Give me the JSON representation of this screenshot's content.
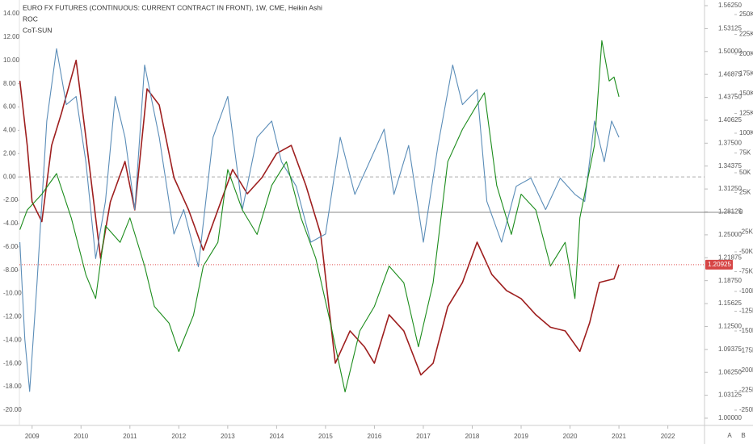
{
  "chart_data": {
    "type": "line",
    "headers": [
      "EURO FX FUTURES (CONTINUOUS: CURRENT CONTRACT IN FRONT), 1W, CME, Heikin Ashi",
      "ROC",
      "CoT-SUN"
    ],
    "controls": [
      "A",
      "B"
    ],
    "xlim": [
      2008.74,
      2022.75
    ],
    "xticks": [
      2009,
      2010,
      2011,
      2012,
      2013,
      2014,
      2015,
      2016,
      2017,
      2018,
      2019,
      2020,
      2021,
      2022
    ],
    "ylim": [
      -20,
      14
    ],
    "yticks": [
      {
        "value": 14,
        "label": "14.00"
      },
      {
        "value": 12,
        "label": "12.00"
      },
      {
        "value": 10,
        "label": "10.00"
      },
      {
        "value": 8,
        "label": "8.00"
      },
      {
        "value": 6,
        "label": "6.00"
      },
      {
        "value": 4,
        "label": "4.00"
      },
      {
        "value": 2,
        "label": "2.00"
      },
      {
        "value": 0,
        "label": "0.00"
      },
      {
        "value": -2,
        "label": "-2.00"
      },
      {
        "value": -4,
        "label": "-4.00"
      },
      {
        "value": -6,
        "label": "-6.00"
      },
      {
        "value": -8,
        "label": "-8.00"
      },
      {
        "value": -10,
        "label": "-10.00"
      },
      {
        "value": -12,
        "label": "-12.00"
      },
      {
        "value": -14,
        "label": "-14.00"
      },
      {
        "value": -16,
        "label": "-16.00"
      },
      {
        "value": -18,
        "label": "-18.00"
      },
      {
        "value": -20,
        "label": "-20.00"
      }
    ],
    "y2lim": [
      1.0,
      1.5625
    ],
    "y2ticks": [
      {
        "value": 1.5625,
        "label": "1.56250"
      },
      1.53125,
      {
        "value": 1.5,
        "label": "1.50000"
      },
      1.46875,
      {
        "value": 1.4375,
        "label": "1.43750"
      },
      1.40625,
      {
        "value": 1.375,
        "label": "1.37500"
      },
      1.34375,
      {
        "value": 1.3125,
        "label": "1.31250"
      },
      1.28125,
      {
        "value": 1.25,
        "label": "1.25000"
      },
      1.21875,
      {
        "value": 1.1875,
        "label": "1.18750"
      },
      1.15625,
      {
        "value": 1.125,
        "label": "1.12500"
      },
      1.09375,
      {
        "value": 1.0625,
        "label": "1.06250"
      },
      1.03125,
      {
        "value": 1,
        "label": "1.00000"
      }
    ],
    "y3lim": [
      -250000,
      250000
    ],
    "y3ticks": [
      {
        "value": 250000,
        "label": "250K"
      },
      {
        "value": 225000,
        "label": "225K"
      },
      {
        "value": 200000,
        "label": "200K"
      },
      {
        "value": 175000,
        "label": "175K"
      },
      {
        "value": 150000,
        "label": "150K"
      },
      {
        "value": 125000,
        "label": "125K"
      },
      {
        "value": 100000,
        "label": "100K"
      },
      {
        "value": 75000,
        "label": "75K"
      },
      {
        "value": 50000,
        "label": "50K"
      },
      {
        "value": 25000,
        "label": "25K"
      },
      0,
      {
        "value": -25000,
        "label": "-25K"
      },
      {
        "value": -50000,
        "label": "-50K"
      },
      {
        "value": -75000,
        "label": "-75K"
      },
      {
        "value": -100000,
        "label": "-100K"
      },
      {
        "value": -125000,
        "label": "-125K"
      },
      {
        "value": -150000,
        "label": "-150K"
      },
      {
        "value": -175000,
        "label": "-175K"
      },
      {
        "value": -200000,
        "label": "-200K"
      },
      {
        "value": -225000,
        "label": "-225K"
      },
      {
        "value": -250000,
        "label": "-250K"
      }
    ],
    "series": [
      {
        "name": "EURO FX FUTURES (CONTINUOUS: CURRENT CONTRACT IN FRONT), 1W, CME, Heikin Ashi",
        "color": "#9e1f1f",
        "axis": "y2",
        "x": [
          2008.75,
          2008.9,
          2009.0,
          2009.2,
          2009.4,
          2009.6,
          2009.9,
          2010.1,
          2010.4,
          2010.6,
          2010.9,
          2011.1,
          2011.35,
          2011.6,
          2011.9,
          2012.2,
          2012.5,
          2012.8,
          2013.1,
          2013.4,
          2013.7,
          2014.0,
          2014.3,
          2014.6,
          2014.9,
          2015.2,
          2015.5,
          2015.8,
          2016.0,
          2016.3,
          2016.6,
          2016.95,
          2017.2,
          2017.5,
          2017.8,
          2018.1,
          2018.4,
          2018.7,
          2019.0,
          2019.3,
          2019.6,
          2019.9,
          2020.2,
          2020.4,
          2020.6,
          2020.9,
          2021.0
        ],
        "values": [
          1.46,
          1.372,
          1.295,
          1.268,
          1.372,
          1.416,
          1.488,
          1.383,
          1.218,
          1.295,
          1.35,
          1.284,
          1.449,
          1.427,
          1.328,
          1.284,
          1.229,
          1.284,
          1.339,
          1.306,
          1.328,
          1.361,
          1.372,
          1.317,
          1.251,
          1.075,
          1.119,
          1.097,
          1.075,
          1.141,
          1.119,
          1.059,
          1.075,
          1.152,
          1.185,
          1.24,
          1.196,
          1.174,
          1.163,
          1.141,
          1.124,
          1.119,
          1.091,
          1.13,
          1.185,
          1.19,
          1.20925
        ]
      },
      {
        "name": "ROC",
        "color": "#5b8db8",
        "axis": "y",
        "x": [
          2008.75,
          2008.85,
          2008.95,
          2009.1,
          2009.3,
          2009.5,
          2009.7,
          2009.9,
          2010.1,
          2010.3,
          2010.5,
          2010.7,
          2010.9,
          2011.1,
          2011.3,
          2011.6,
          2011.9,
          2012.1,
          2012.4,
          2012.7,
          2013.0,
          2013.3,
          2013.6,
          2013.9,
          2014.1,
          2014.4,
          2014.7,
          2015.0,
          2015.3,
          2015.6,
          2015.9,
          2016.2,
          2016.4,
          2016.7,
          2017.0,
          2017.3,
          2017.6,
          2017.8,
          2018.1,
          2018.3,
          2018.6,
          2018.9,
          2019.2,
          2019.5,
          2019.8,
          2020.1,
          2020.3,
          2020.5,
          2020.7,
          2020.85,
          2021.0
        ],
        "values": [
          -5.6,
          -13.9,
          -18.4,
          -9.1,
          4.8,
          11.0,
          6.2,
          6.9,
          1.3,
          -7.0,
          -2.1,
          6.9,
          3.4,
          -2.8,
          9.6,
          3.4,
          -4.9,
          -2.8,
          -7.7,
          3.4,
          6.9,
          -2.8,
          3.4,
          4.8,
          1.3,
          -0.8,
          -5.6,
          -4.9,
          3.4,
          -1.5,
          1.3,
          4.1,
          -1.5,
          2.7,
          -5.6,
          2.7,
          9.6,
          6.2,
          7.5,
          -2.1,
          -5.6,
          -0.8,
          -0.1,
          -2.8,
          -0.1,
          -1.5,
          -2.1,
          4.8,
          1.3,
          4.8,
          3.4
        ]
      },
      {
        "name": "CoT-SUN",
        "color": "#1c8c1c",
        "axis": "y3",
        "x": [
          2008.75,
          2008.9,
          2009.2,
          2009.5,
          2009.8,
          2010.1,
          2010.3,
          2010.5,
          2010.8,
          2011.0,
          2011.3,
          2011.5,
          2011.8,
          2012.0,
          2012.3,
          2012.5,
          2012.8,
          2013.0,
          2013.3,
          2013.6,
          2013.9,
          2014.2,
          2014.5,
          2014.8,
          2015.1,
          2015.4,
          2015.7,
          2016.0,
          2016.3,
          2016.6,
          2016.9,
          2017.2,
          2017.5,
          2017.8,
          2018.1,
          2018.25,
          2018.5,
          2018.8,
          2019.0,
          2019.3,
          2019.6,
          2019.9,
          2020.1,
          2020.2,
          2020.4,
          2020.5,
          2020.65,
          2020.8,
          2020.9,
          2021.0
        ],
        "values": [
          -22000,
          3000,
          23000,
          49000,
          -7000,
          -79000,
          -109000,
          -17000,
          -38000,
          -7000,
          -68000,
          -119000,
          -140000,
          -176000,
          -130000,
          -68000,
          -38000,
          54000,
          3000,
          -28000,
          34000,
          64000,
          -7000,
          -58000,
          -140000,
          -227000,
          -150000,
          -119000,
          -68000,
          -89000,
          -170000,
          -89000,
          64000,
          105000,
          136000,
          151000,
          34000,
          -28000,
          23000,
          3000,
          -68000,
          -38000,
          -109000,
          -7000,
          54000,
          85000,
          217000,
          166000,
          171000,
          146000
        ]
      }
    ]
  }
}
